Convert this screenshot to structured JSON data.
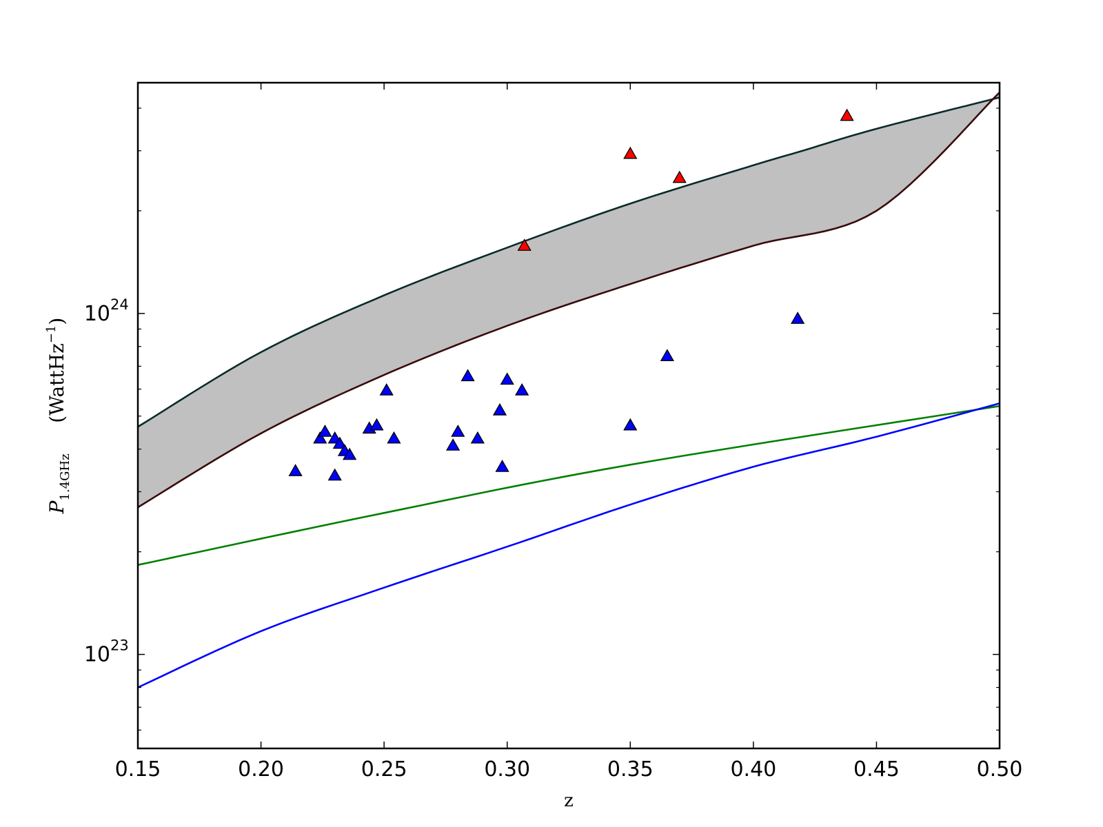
{
  "chart_data": {
    "type": "scatter",
    "xlabel": "z",
    "ylabel": {
      "symbol": "P",
      "subscript": "1.4GHz",
      "unit_open": "(WattHz",
      "unit_exp": "−1",
      "unit_close": ")"
    },
    "xlim": [
      0.15,
      0.5
    ],
    "ylim": [
      5.3e+22,
      4.75e+24
    ],
    "yscale": "log",
    "grid": false,
    "legend": "none",
    "x_ticks": [
      {
        "value": 0.15,
        "label": "0.15"
      },
      {
        "value": 0.2,
        "label": "0.20"
      },
      {
        "value": 0.25,
        "label": "0.25"
      },
      {
        "value": 0.3,
        "label": "0.30"
      },
      {
        "value": 0.35,
        "label": "0.35"
      },
      {
        "value": 0.4,
        "label": "0.40"
      },
      {
        "value": 0.45,
        "label": "0.45"
      },
      {
        "value": 0.5,
        "label": "0.50"
      }
    ],
    "y_ticks": [
      {
        "value": 1e+23,
        "base": "10",
        "exp": "23"
      },
      {
        "value": 1e+24,
        "base": "10",
        "exp": "24"
      }
    ],
    "band": {
      "color": "#c0c0c0",
      "upper_edge_color": "#0a2a2a",
      "lower_edge_color": "#3a0a0a",
      "upper": [
        [
          0.15,
          4.65e+23
        ],
        [
          0.2,
          7.7e+23
        ],
        [
          0.25,
          1.13e+24
        ],
        [
          0.3,
          1.56e+24
        ],
        [
          0.35,
          2.1e+24
        ],
        [
          0.4,
          2.72e+24
        ],
        [
          0.42,
          3e+24
        ],
        [
          0.45,
          3.48e+24
        ],
        [
          0.5,
          4.3e+24
        ]
      ],
      "lower": [
        [
          0.15,
          2.7e+23
        ],
        [
          0.2,
          4.45e+23
        ],
        [
          0.25,
          6.6e+23
        ],
        [
          0.3,
          9.2e+23
        ],
        [
          0.35,
          1.22e+24
        ],
        [
          0.4,
          1.58e+24
        ],
        [
          0.45,
          2e+24
        ],
        [
          0.5,
          4.45e+24
        ]
      ]
    },
    "series": [
      {
        "marker": "triangle",
        "color": "#ff0000",
        "points": [
          [
            0.307,
            1.58e+24
          ],
          [
            0.35,
            2.94e+24
          ],
          [
            0.37,
            2.5e+24
          ],
          [
            0.438,
            3.8e+24
          ]
        ]
      },
      {
        "marker": "triangle",
        "color": "#0000ff",
        "points": [
          [
            0.214,
            3.45e+23
          ],
          [
            0.224,
            4.3e+23
          ],
          [
            0.226,
            4.5e+23
          ],
          [
            0.23,
            4.3e+23
          ],
          [
            0.23,
            3.35e+23
          ],
          [
            0.232,
            4.15e+23
          ],
          [
            0.234,
            3.95e+23
          ],
          [
            0.236,
            3.85e+23
          ],
          [
            0.244,
            4.6e+23
          ],
          [
            0.247,
            4.7e+23
          ],
          [
            0.251,
            5.95e+23
          ],
          [
            0.254,
            4.3e+23
          ],
          [
            0.278,
            4.1e+23
          ],
          [
            0.28,
            4.5e+23
          ],
          [
            0.284,
            6.55e+23
          ],
          [
            0.288,
            4.3e+23
          ],
          [
            0.297,
            5.2e+23
          ],
          [
            0.298,
            3.55e+23
          ],
          [
            0.3,
            6.4e+23
          ],
          [
            0.306,
            5.95e+23
          ],
          [
            0.35,
            4.7e+23
          ],
          [
            0.365,
            7.5e+23
          ],
          [
            0.418,
            9.65e+23
          ]
        ]
      }
    ],
    "lines": [
      {
        "color": "#007f00",
        "points": [
          [
            0.15,
            1.83e+23
          ],
          [
            0.25,
            2.6e+23
          ],
          [
            0.35,
            3.6e+23
          ],
          [
            0.5,
            5.35e+23
          ]
        ]
      },
      {
        "color": "#0000ff",
        "points": [
          [
            0.15,
            8e+22
          ],
          [
            0.2,
            1.17e+23
          ],
          [
            0.25,
            1.57e+23
          ],
          [
            0.3,
            2.07e+23
          ],
          [
            0.35,
            2.75e+23
          ],
          [
            0.4,
            3.55e+23
          ],
          [
            0.45,
            4.35e+23
          ],
          [
            0.5,
            5.45e+23
          ]
        ]
      }
    ]
  }
}
